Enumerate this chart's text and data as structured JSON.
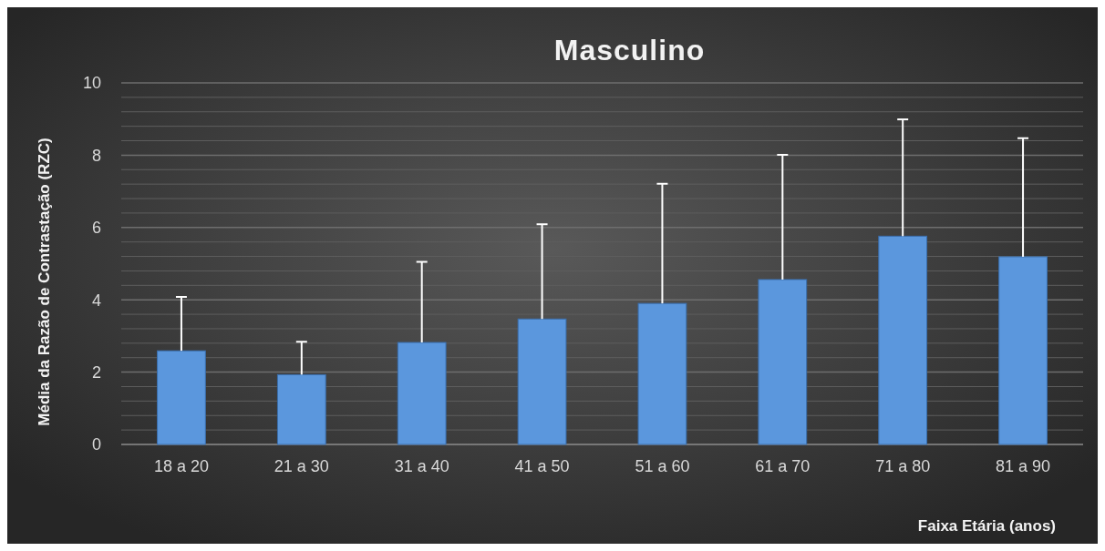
{
  "chart_data": {
    "type": "bar",
    "title": "Masculino",
    "xlabel": "Faixa Etária (anos)",
    "ylabel": "Média da Razão de Contrastação (RZC)",
    "categories": [
      "18 a 20",
      "21 a 30",
      "31 a 40",
      "41 a 50",
      "51 a 60",
      "61 a 70",
      "71 a 80",
      "81 a 90"
    ],
    "values": [
      2.59,
      1.93,
      2.82,
      3.47,
      3.9,
      4.56,
      5.76,
      5.19
    ],
    "errors": [
      [
        2.59,
        4.08
      ],
      [
        1.93,
        2.84
      ],
      [
        2.82,
        5.05
      ],
      [
        3.47,
        6.09
      ],
      [
        3.9,
        7.21
      ],
      [
        4.56,
        8.01
      ],
      [
        5.76,
        8.99
      ],
      [
        5.19,
        8.47
      ]
    ],
    "color": "#5b97dd",
    "ylim": [
      0,
      10
    ],
    "yticks": [
      0,
      {
        "value": 0.4,
        "label": null
      },
      {
        "value": 0.8,
        "label": null
      },
      {
        "value": 1.2,
        "label": null
      },
      {
        "value": 1.6,
        "label": null
      },
      2,
      {
        "value": 2.4,
        "label": null
      },
      {
        "value": 2.8,
        "label": null
      },
      {
        "value": 3.2,
        "label": null
      },
      {
        "value": 3.6,
        "label": null
      },
      4,
      {
        "value": 4.4,
        "label": null
      },
      {
        "value": 4.8,
        "label": null
      },
      {
        "value": 5.2,
        "label": null
      },
      {
        "value": 5.6,
        "label": null
      },
      6,
      {
        "value": 6.4,
        "label": null
      },
      {
        "value": 6.8,
        "label": null
      },
      {
        "value": 7.2,
        "label": null
      },
      {
        "value": 7.6,
        "label": null
      },
      8,
      {
        "value": 8.4,
        "label": null
      },
      {
        "value": 8.8,
        "label": null
      },
      {
        "value": 9.2,
        "label": null
      },
      {
        "value": 9.6,
        "label": null
      },
      10
    ],
    "grid": true
  }
}
